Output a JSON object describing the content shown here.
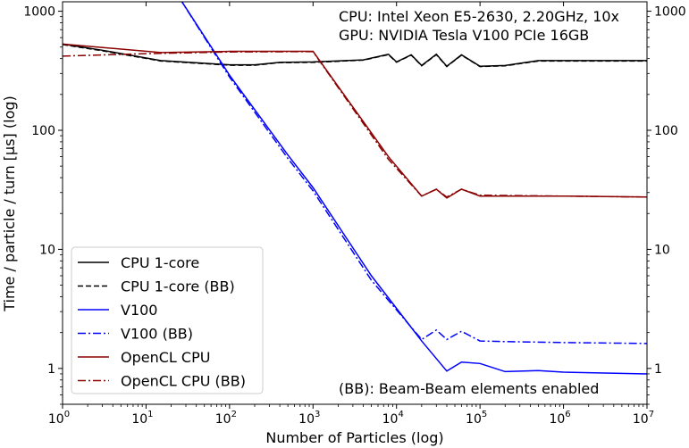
{
  "chart_data": {
    "type": "line",
    "xlabel": "Number of Particles (log)",
    "ylabel": "Time / particle / turn [µs] (log)",
    "xscale": "log",
    "yscale": "log",
    "xlim": [
      1,
      10000000
    ],
    "ylim": [
      0.5,
      1200
    ],
    "legend_position": "bottom-left",
    "grid": false,
    "x_ticks": [
      {
        "value": 1,
        "base": "10",
        "exp": "0"
      },
      {
        "value": 10,
        "base": "10",
        "exp": "1"
      },
      {
        "value": 100,
        "base": "10",
        "exp": "2"
      },
      {
        "value": 1000,
        "base": "10",
        "exp": "3"
      },
      {
        "value": 10000,
        "base": "10",
        "exp": "4"
      },
      {
        "value": 100000,
        "base": "10",
        "exp": "5"
      },
      {
        "value": 1000000,
        "base": "10",
        "exp": "6"
      },
      {
        "value": 10000000,
        "base": "10",
        "exp": "7"
      }
    ],
    "y_ticks": [
      {
        "value": 1,
        "label": "1"
      },
      {
        "value": 10,
        "label": "10"
      },
      {
        "value": 100,
        "label": "100"
      },
      {
        "value": 1000,
        "label": "1000"
      }
    ],
    "annotations": {
      "cpu": "CPU: Intel Xeon E5-2630, 2.20GHz, 10x",
      "gpu": "GPU: NVIDIA Tesla V100 PCIe 16GB",
      "bb_note": "(BB): Beam-Beam elements enabled"
    },
    "series": [
      {
        "name": "CPU 1-core",
        "color": "#000000",
        "dash": "solid",
        "points": [
          [
            1,
            530
          ],
          [
            3,
            470
          ],
          [
            15,
            385
          ],
          [
            100,
            355
          ],
          [
            200,
            355
          ],
          [
            400,
            372
          ],
          [
            1000,
            375
          ],
          [
            4000,
            390
          ],
          [
            8000,
            435
          ],
          [
            10000,
            375
          ],
          [
            15000,
            430
          ],
          [
            20000,
            350
          ],
          [
            30000,
            435
          ],
          [
            40000,
            345
          ],
          [
            60000,
            430
          ],
          [
            100000,
            345
          ],
          [
            200000,
            350
          ],
          [
            500000,
            385
          ],
          [
            1000000,
            385
          ],
          [
            10000000,
            385
          ]
        ]
      },
      {
        "name": "CPU 1-core (BB)",
        "color": "#000000",
        "dash": "dashed",
        "points": [
          [
            1,
            525
          ],
          [
            3,
            465
          ],
          [
            15,
            382
          ],
          [
            100,
            352
          ],
          [
            200,
            352
          ],
          [
            400,
            370
          ],
          [
            1000,
            372
          ],
          [
            4000,
            388
          ],
          [
            8000,
            432
          ],
          [
            10000,
            373
          ],
          [
            15000,
            428
          ],
          [
            20000,
            348
          ],
          [
            30000,
            432
          ],
          [
            40000,
            343
          ],
          [
            60000,
            428
          ],
          [
            100000,
            343
          ],
          [
            200000,
            348
          ],
          [
            500000,
            382
          ],
          [
            1000000,
            382
          ],
          [
            10000000,
            382
          ]
        ]
      },
      {
        "name": "V100",
        "color": "#0000ff",
        "dash": "solid",
        "points": [
          [
            25,
            1300
          ],
          [
            100,
            290
          ],
          [
            500,
            62
          ],
          [
            1000,
            33
          ],
          [
            5000,
            6
          ],
          [
            20000,
            1.7
          ],
          [
            40000,
            0.95
          ],
          [
            60000,
            1.13
          ],
          [
            100000,
            1.1
          ],
          [
            200000,
            0.94
          ],
          [
            500000,
            0.96
          ],
          [
            1000000,
            0.93
          ],
          [
            10000000,
            0.9
          ]
        ]
      },
      {
        "name": "V100 (BB)",
        "color": "#0000ff",
        "dash": "dashdot",
        "points": [
          [
            25,
            1300
          ],
          [
            100,
            280
          ],
          [
            500,
            58
          ],
          [
            1000,
            31
          ],
          [
            5000,
            5.5
          ],
          [
            20000,
            1.75
          ],
          [
            30000,
            2.1
          ],
          [
            40000,
            1.75
          ],
          [
            60000,
            2.05
          ],
          [
            100000,
            1.7
          ],
          [
            200000,
            1.68
          ],
          [
            1000000,
            1.65
          ],
          [
            10000000,
            1.62
          ]
        ]
      },
      {
        "name": "OpenCL CPU",
        "color": "#8b0000",
        "dash": "solid",
        "points": [
          [
            1,
            530
          ],
          [
            15,
            450
          ],
          [
            100,
            460
          ],
          [
            500,
            460
          ],
          [
            1000,
            460
          ],
          [
            8000,
            60
          ],
          [
            20000,
            28
          ],
          [
            30000,
            32
          ],
          [
            40000,
            27
          ],
          [
            60000,
            32
          ],
          [
            100000,
            28
          ],
          [
            1000000,
            28
          ],
          [
            10000000,
            27.5
          ]
        ]
      },
      {
        "name": "OpenCL CPU (BB)",
        "color": "#8b0000",
        "dash": "dashdot",
        "points": [
          [
            1,
            420
          ],
          [
            10,
            440
          ],
          [
            100,
            455
          ],
          [
            1000,
            458
          ],
          [
            8000,
            57
          ],
          [
            20000,
            28
          ],
          [
            30000,
            32
          ],
          [
            40000,
            27.5
          ],
          [
            60000,
            32
          ],
          [
            100000,
            28.5
          ],
          [
            1000000,
            28
          ],
          [
            10000000,
            27.5
          ]
        ]
      }
    ]
  }
}
